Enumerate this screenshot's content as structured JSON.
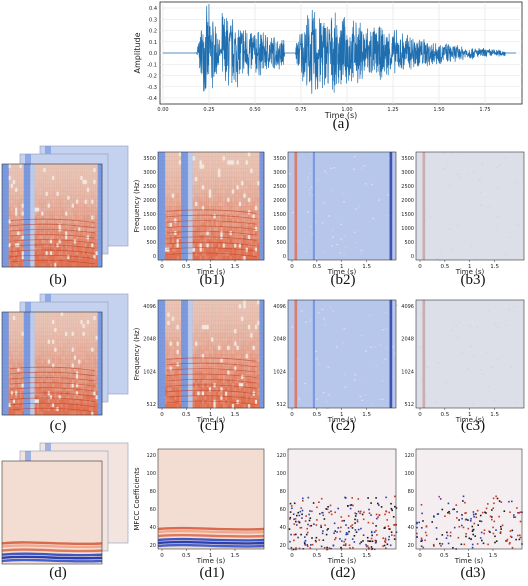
{
  "waveform": {
    "ylabel": "Amplitude",
    "xlabel": "Time (s)",
    "yticks": [
      "0.4",
      "0.3",
      "0.2",
      "0.1",
      "0.0",
      "-0.1",
      "-0.2",
      "-0.3",
      "-0.4"
    ],
    "xticks": [
      "0.00",
      "0.25",
      "0.50",
      "0.75",
      "1.00",
      "1.25",
      "1.50",
      "1.75"
    ],
    "caption": "(a)",
    "color": "#1f6fb0"
  },
  "captions": {
    "b": "(b)",
    "b1": "(b1)",
    "b2": "(b2)",
    "b3": "(b3)",
    "c": "(c)",
    "c1": "(c1)",
    "c2": "(c2)",
    "c3": "(c3)",
    "d": "(d)",
    "d1": "(d1)",
    "d2": "(d2)",
    "d3": "(d3)"
  },
  "axes": {
    "time_label": "Time (s)",
    "time_ticks": [
      "0",
      "0.5",
      "1",
      "1.5"
    ],
    "freq_label": "Frequency (Hz)",
    "freq_ticks_b": [
      "3500",
      "3000",
      "2500",
      "2000",
      "1500",
      "1000",
      "500",
      "0"
    ],
    "freq_ticks_c": [
      "4096",
      "2048",
      "1024",
      "512"
    ],
    "mfcc_label": "MFCC Coefficients",
    "mfcc_ticks": [
      "120",
      "100",
      "80",
      "60",
      "40",
      "20"
    ]
  },
  "colors": {
    "cool": "#6a8fe0",
    "warm": "#e06a4a",
    "light": "#e9d6cc",
    "mid": "#b9c9ea",
    "frame_border": "#9aa7c2"
  }
}
